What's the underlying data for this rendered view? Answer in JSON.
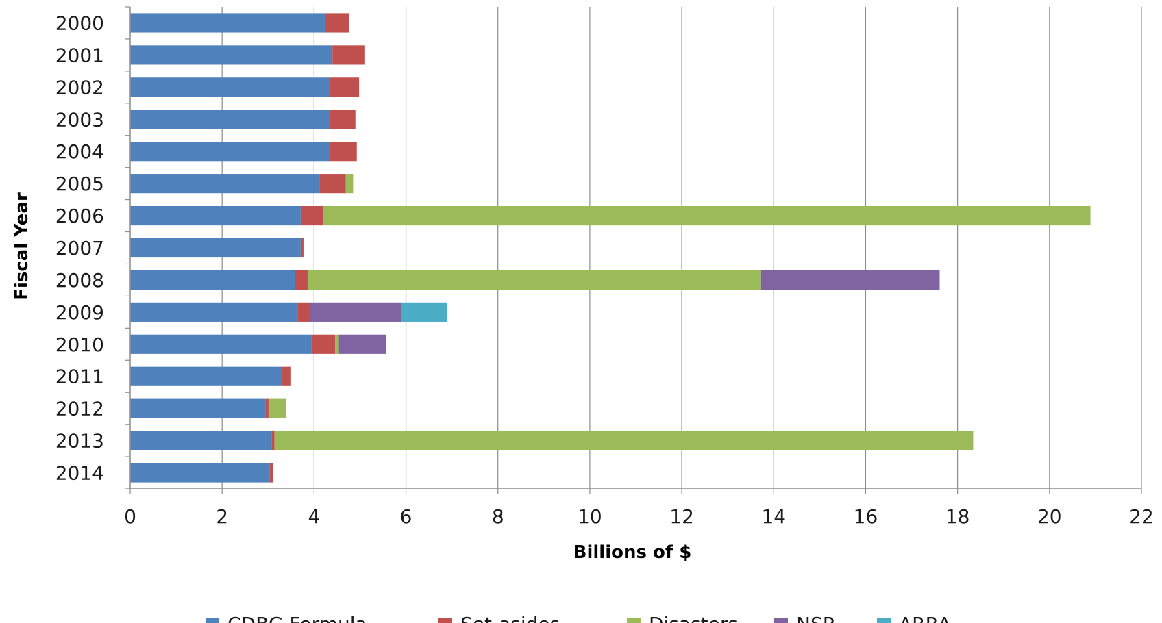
{
  "chart_data": {
    "type": "bar",
    "orientation": "horizontal",
    "stacked": true,
    "title": "",
    "xlabel": "Billions of $",
    "ylabel": "Fiscal Year",
    "xlim": [
      0,
      22
    ],
    "xticks": [
      0,
      2,
      4,
      6,
      8,
      10,
      12,
      14,
      16,
      18,
      20,
      22
    ],
    "grid": "vertical",
    "legend_position": "bottom",
    "categories": [
      "2000",
      "2001",
      "2002",
      "2003",
      "2004",
      "2005",
      "2006",
      "2007",
      "2008",
      "2009",
      "2010",
      "2011",
      "2012",
      "2013",
      "2014"
    ],
    "series": [
      {
        "name": "CDBG Formula",
        "color": "#4F81BD",
        "values": [
          4.24,
          4.4,
          4.34,
          4.34,
          4.34,
          4.12,
          3.71,
          3.71,
          3.59,
          3.64,
          3.94,
          3.31,
          2.95,
          3.08,
          3.03
        ]
      },
      {
        "name": "Set-asides",
        "color": "#C0504D",
        "values": [
          0.53,
          0.71,
          0.64,
          0.56,
          0.59,
          0.57,
          0.48,
          0.06,
          0.27,
          0.28,
          0.52,
          0.19,
          0.06,
          0.06,
          0.07
        ]
      },
      {
        "name": "Disasters",
        "color": "#9BBB59",
        "values": [
          0,
          0,
          0,
          0,
          0,
          0.16,
          16.7,
          0,
          9.85,
          0,
          0.08,
          0,
          0.38,
          15.2,
          0
        ]
      },
      {
        "name": "NSP",
        "color": "#8064A2",
        "values": [
          0,
          0,
          0,
          0,
          0,
          0,
          0,
          0,
          3.9,
          1.98,
          1.02,
          0,
          0,
          0,
          0
        ]
      },
      {
        "name": "ARRA",
        "color": "#4BACC6",
        "values": [
          0,
          0,
          0,
          0,
          0,
          0,
          0,
          0,
          0,
          1.0,
          0,
          0,
          0,
          0,
          0
        ]
      }
    ]
  }
}
